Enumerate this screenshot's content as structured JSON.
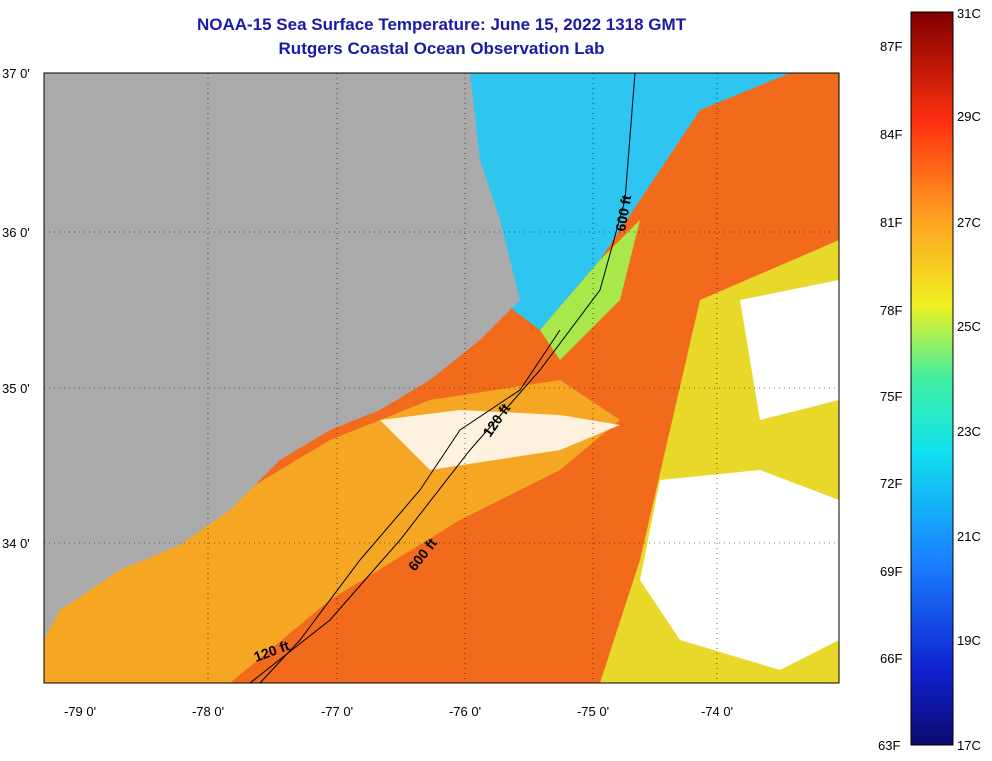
{
  "title_line1": "NOAA-15 Sea Surface Temperature:  June 15, 2022 1318 GMT",
  "title_line2": "Rutgers Coastal Ocean Observation Lab",
  "lat_labels": [
    "37 0'",
    "36 0'",
    "35 0'",
    "34 0'"
  ],
  "lon_labels": [
    "-79 0'",
    "-78 0'",
    "-77 0'",
    "-76 0'",
    "-75 0'",
    "-74 0'"
  ],
  "contour_labels": [
    "600 ft",
    "120 ft",
    "600 ft",
    "120 ft"
  ],
  "colorbar": {
    "fahrenheit": [
      "87F",
      "84F",
      "81F",
      "78F",
      "75F",
      "72F",
      "69F",
      "66F",
      "63F"
    ],
    "celsius": [
      "31C",
      "29C",
      "27C",
      "25C",
      "23C",
      "21C",
      "19C",
      "17C"
    ]
  },
  "colors": {
    "title": "#1a1aa6",
    "land": "#aaaaaa",
    "warm_water": "#f26a1b",
    "coastal_water": "#f5a623",
    "cool_water": "#2ec6f0",
    "cloud": "#ffffff"
  }
}
